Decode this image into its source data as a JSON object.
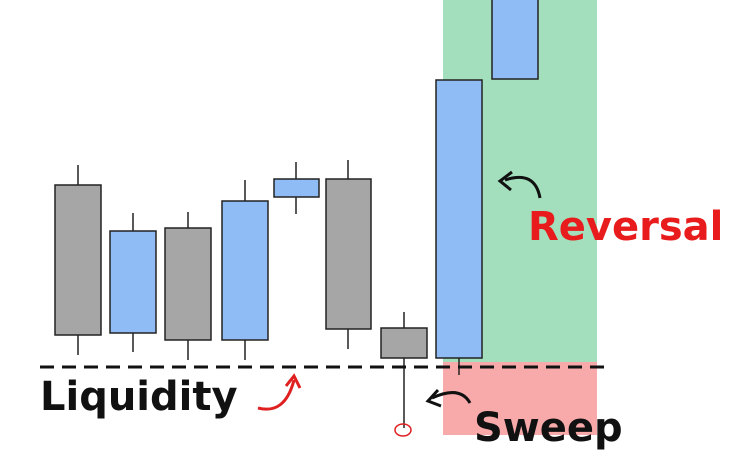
{
  "labels": {
    "liquidity": "Liquidity",
    "reversal": "Reversal",
    "sweep": "Sweep"
  }
}
